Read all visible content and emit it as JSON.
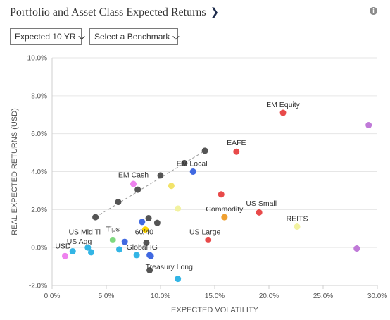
{
  "header": {
    "title": "Portfolio and Asset Class Expected Returns",
    "title_icon": "chevron-right-icon",
    "info_icon": "info-icon"
  },
  "controls": {
    "horizon_label": "Expected 10 YR",
    "benchmark_label": "Select a Benchmark",
    "dropdown_icon": "chevron-down-icon"
  },
  "chart_data": {
    "type": "scatter",
    "title": "",
    "xlabel": "EXPECTED VOLATILITY",
    "ylabel": "REAL EXPECTED RETURNS (USD)",
    "xlim": [
      0,
      30
    ],
    "ylim": [
      -2,
      10
    ],
    "x_ticks": [
      0,
      5,
      10,
      15,
      20,
      25,
      30
    ],
    "x_tick_labels": [
      "0.0%",
      "5.0%",
      "10.0%",
      "15.0%",
      "20.0%",
      "25.0%",
      "30.0%"
    ],
    "y_ticks": [
      -2,
      0,
      2,
      4,
      6,
      8,
      10
    ],
    "y_tick_labels": [
      "-2.0%",
      "0.0%",
      "2.0%",
      "4.0%",
      "6.0%",
      "8.0%",
      "10.0%"
    ],
    "grid": true,
    "frontier": {
      "style": "dashed",
      "color": "#999999",
      "points": [
        [
          4.0,
          1.6
        ],
        [
          14.1,
          5.1
        ]
      ]
    },
    "points": [
      {
        "x": 1.2,
        "y": -0.45,
        "color": "#ee82ee"
      },
      {
        "x": 1.9,
        "y": -0.2,
        "color": "#33b5e5"
      },
      {
        "x": 3.3,
        "y": 0.0,
        "color": "#33b5e5"
      },
      {
        "x": 3.6,
        "y": -0.25,
        "color": "#33b5e5"
      },
      {
        "x": 4.0,
        "y": 1.6,
        "color": "#555555"
      },
      {
        "x": 5.6,
        "y": 0.4,
        "color": "#7fd87f"
      },
      {
        "x": 6.2,
        "y": -0.1,
        "color": "#33b5e5"
      },
      {
        "x": 6.1,
        "y": 2.4,
        "color": "#555555"
      },
      {
        "x": 6.7,
        "y": 0.3,
        "color": "#4169e1"
      },
      {
        "x": 7.5,
        "y": 3.35,
        "color": "#ee82ee"
      },
      {
        "x": 7.8,
        "y": -0.4,
        "color": "#33b5e5"
      },
      {
        "x": 7.9,
        "y": 3.05,
        "color": "#555555"
      },
      {
        "x": 8.3,
        "y": 1.35,
        "color": "#4169e1"
      },
      {
        "x": 8.6,
        "y": 0.95,
        "color": "#ffd700"
      },
      {
        "x": 8.7,
        "y": 0.25,
        "color": "#555555"
      },
      {
        "x": 8.9,
        "y": 1.55,
        "color": "#555555"
      },
      {
        "x": 9.0,
        "y": -0.4,
        "color": "#4169e1"
      },
      {
        "x": 9.1,
        "y": -0.45,
        "color": "#4169e1"
      },
      {
        "x": 9.0,
        "y": -1.2,
        "color": "#555555"
      },
      {
        "x": 9.7,
        "y": 1.3,
        "color": "#555555"
      },
      {
        "x": 10.0,
        "y": 3.8,
        "color": "#555555"
      },
      {
        "x": 11.0,
        "y": 3.25,
        "color": "#f2e36a"
      },
      {
        "x": 11.6,
        "y": -1.65,
        "color": "#33b5e5"
      },
      {
        "x": 11.6,
        "y": 2.05,
        "color": "#f2f2a0"
      },
      {
        "x": 12.2,
        "y": 4.45,
        "color": "#555555"
      },
      {
        "x": 13.0,
        "y": 4.0,
        "color": "#4169e1"
      },
      {
        "x": 14.1,
        "y": 5.1,
        "color": "#555555"
      },
      {
        "x": 14.4,
        "y": 0.4,
        "color": "#e84a4a"
      },
      {
        "x": 15.6,
        "y": 2.8,
        "color": "#e84a4a"
      },
      {
        "x": 15.9,
        "y": 1.6,
        "color": "#f0a030"
      },
      {
        "x": 17.0,
        "y": 5.05,
        "color": "#e84a4a"
      },
      {
        "x": 19.1,
        "y": 1.85,
        "color": "#e84a4a"
      },
      {
        "x": 21.3,
        "y": 7.1,
        "color": "#e84a4a"
      },
      {
        "x": 22.6,
        "y": 1.1,
        "color": "#f2f2a0"
      },
      {
        "x": 28.1,
        "y": -0.05,
        "color": "#c07ad8"
      },
      {
        "x": 29.2,
        "y": 6.45,
        "color": "#c07ad8"
      }
    ],
    "annotations": [
      {
        "text": "EM Equity",
        "x": 21.3,
        "y": 7.4
      },
      {
        "text": "EAFE",
        "x": 17.0,
        "y": 5.4
      },
      {
        "text": "EM Local",
        "x": 12.9,
        "y": 4.3
      },
      {
        "text": "EM Cash",
        "x": 7.5,
        "y": 3.7
      },
      {
        "text": "Commodity",
        "x": 15.9,
        "y": 1.9
      },
      {
        "text": "US Small",
        "x": 19.3,
        "y": 2.2
      },
      {
        "text": "REITS",
        "x": 22.6,
        "y": 1.4
      },
      {
        "text": "Tips",
        "x": 5.6,
        "y": 0.85
      },
      {
        "text": "US Mid Ti",
        "x": 3.0,
        "y": 0.7
      },
      {
        "text": "60/40",
        "x": 8.5,
        "y": 0.7
      },
      {
        "text": "US Large",
        "x": 14.1,
        "y": 0.7
      },
      {
        "text": "USD",
        "x": 1.0,
        "y": -0.05
      },
      {
        "text": "US Agg",
        "x": 2.5,
        "y": 0.2
      },
      {
        "text": "Global IG",
        "x": 8.3,
        "y": -0.1
      },
      {
        "text": "Treasury Long",
        "x": 10.8,
        "y": -1.15
      }
    ]
  }
}
